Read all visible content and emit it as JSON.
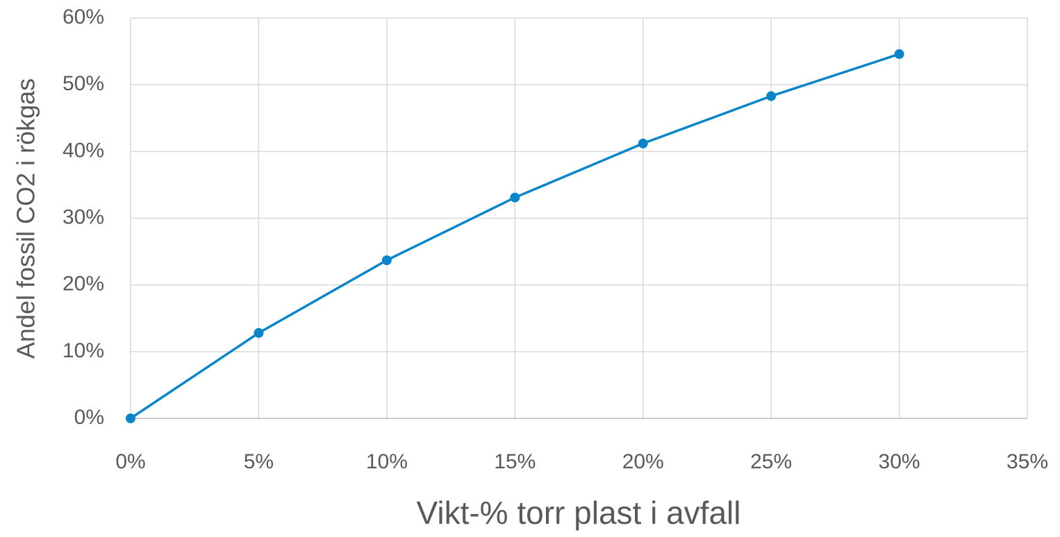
{
  "chart_data": {
    "type": "line",
    "x_label": "Vikt-% torr plast i avfall",
    "y_label": "Andel fossil CO2 i rökgas",
    "series": [
      {
        "color": "#0b84c8",
        "x": [
          0,
          5,
          10,
          15,
          20,
          25,
          30
        ],
        "values": [
          0,
          12.8,
          23.7,
          33.1,
          41.2,
          48.3,
          54.6
        ]
      }
    ],
    "xlim": [
      0,
      35
    ],
    "xticks": [
      {
        "value": 0,
        "label": "0%"
      },
      {
        "value": 5,
        "label": "5%"
      },
      {
        "value": 10,
        "label": "10%"
      },
      {
        "value": 15,
        "label": "15%"
      },
      {
        "value": 20,
        "label": "20%"
      },
      {
        "value": 25,
        "label": "25%"
      },
      {
        "value": 30,
        "label": "30%"
      },
      {
        "value": 35,
        "label": "35%"
      }
    ],
    "ylim": [
      0,
      60
    ],
    "yticks": [
      {
        "value": 0,
        "label": "0%"
      },
      {
        "value": 10,
        "label": "10%"
      },
      {
        "value": 20,
        "label": "20%"
      },
      {
        "value": 30,
        "label": "30%"
      },
      {
        "value": 40,
        "label": "40%"
      },
      {
        "value": 50,
        "label": "50%"
      },
      {
        "value": 60,
        "label": "60%"
      }
    ],
    "grid": true
  }
}
